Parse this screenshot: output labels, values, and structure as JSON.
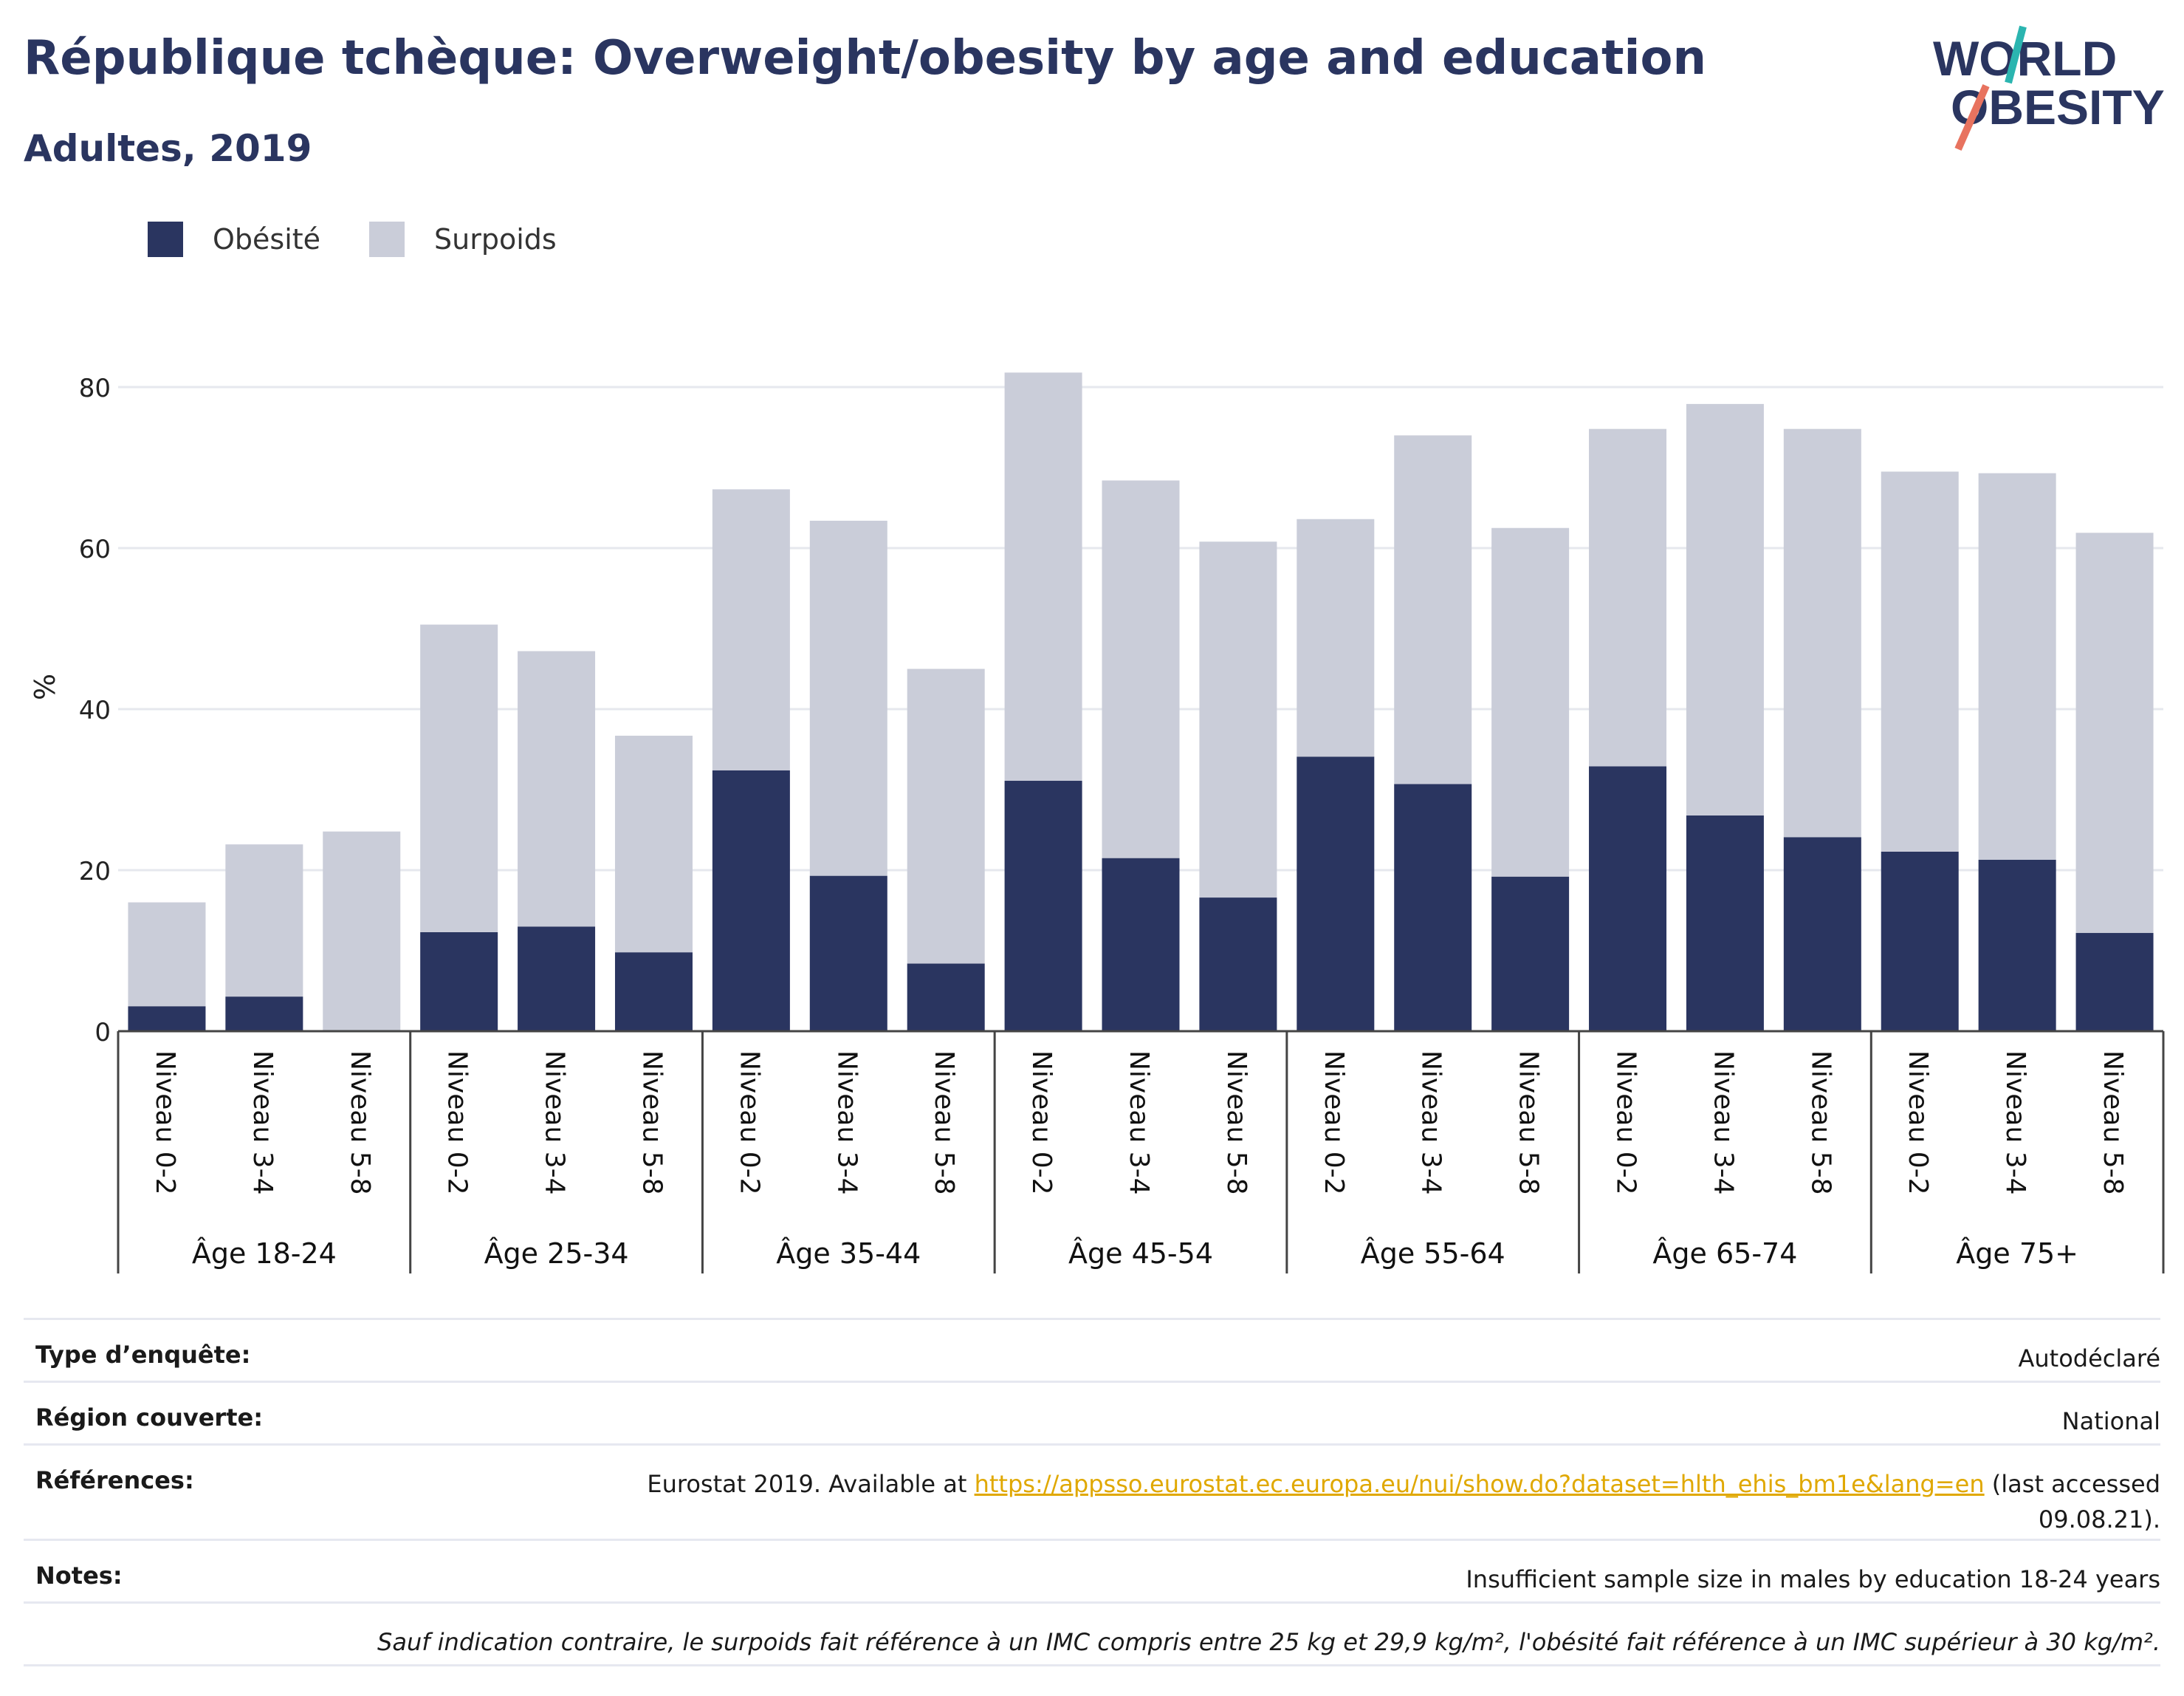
{
  "header": {
    "title": "République tchèque: Overweight/obesity by age and education",
    "subtitle": "Adultes, 2019"
  },
  "logo": {
    "line1": "WORLD",
    "line2": "OBESITY"
  },
  "colors": {
    "obesity": "#2a3560",
    "overweight": "#cacdd9",
    "accent_teal": "#2bb5b0",
    "accent_coral": "#e8735f",
    "link": "#e0a800"
  },
  "legend": [
    {
      "label": "Obésité",
      "color": "#2a3560"
    },
    {
      "label": "Surpoids",
      "color": "#cacdd9"
    }
  ],
  "chart_data": {
    "type": "bar",
    "stacked": true,
    "ylabel": "%",
    "ylim": [
      0,
      84
    ],
    "yticks": [
      0,
      20,
      40,
      60,
      80
    ],
    "grid": true,
    "legend_position": "top-left",
    "groups": [
      "Âge 18-24",
      "Âge 25-34",
      "Âge 35-44",
      "Âge 45-54",
      "Âge 55-64",
      "Âge 65-74",
      "Âge 75+"
    ],
    "subcategories": [
      "Niveau 0-2",
      "Niveau 3-4",
      "Niveau 5-8"
    ],
    "series": [
      {
        "name": "Obésité",
        "values": [
          3.1,
          4.3,
          0,
          12.3,
          13.0,
          9.8,
          32.4,
          19.3,
          8.4,
          31.1,
          21.5,
          16.6,
          34.1,
          30.7,
          19.2,
          32.9,
          26.8,
          24.1,
          22.3,
          21.3,
          12.2
        ]
      },
      {
        "name": "Surpoids",
        "values": [
          12.9,
          18.9,
          24.8,
          38.2,
          34.2,
          26.9,
          34.9,
          44.1,
          36.6,
          50.7,
          46.9,
          44.2,
          29.5,
          43.3,
          43.3,
          41.9,
          51.1,
          50.7,
          47.2,
          48.0,
          49.7
        ]
      }
    ]
  },
  "info": {
    "survey_label": "Type d’enquête:",
    "survey_value": "Autodéclaré",
    "region_label": "Région couverte:",
    "region_value": "National",
    "refs_label": "Références:",
    "refs_prefix": "Eurostat 2019. Available at ",
    "refs_link": "https://appsso.eurostat.ec.europa.eu/nui/show.do?dataset=hlth_ehis_bm1e&lang=en",
    "refs_suffix": " (last accessed",
    "refs_date": "09.08.21).",
    "notes_label": "Notes:",
    "notes_value": "Insufficient sample size in males by education 18-24 years",
    "definition": "Sauf indication contraire, le surpoids fait référence à un IMC compris entre 25 kg et 29,9 kg/m², l'obésité fait référence à un IMC supérieur à 30 kg/m²."
  }
}
